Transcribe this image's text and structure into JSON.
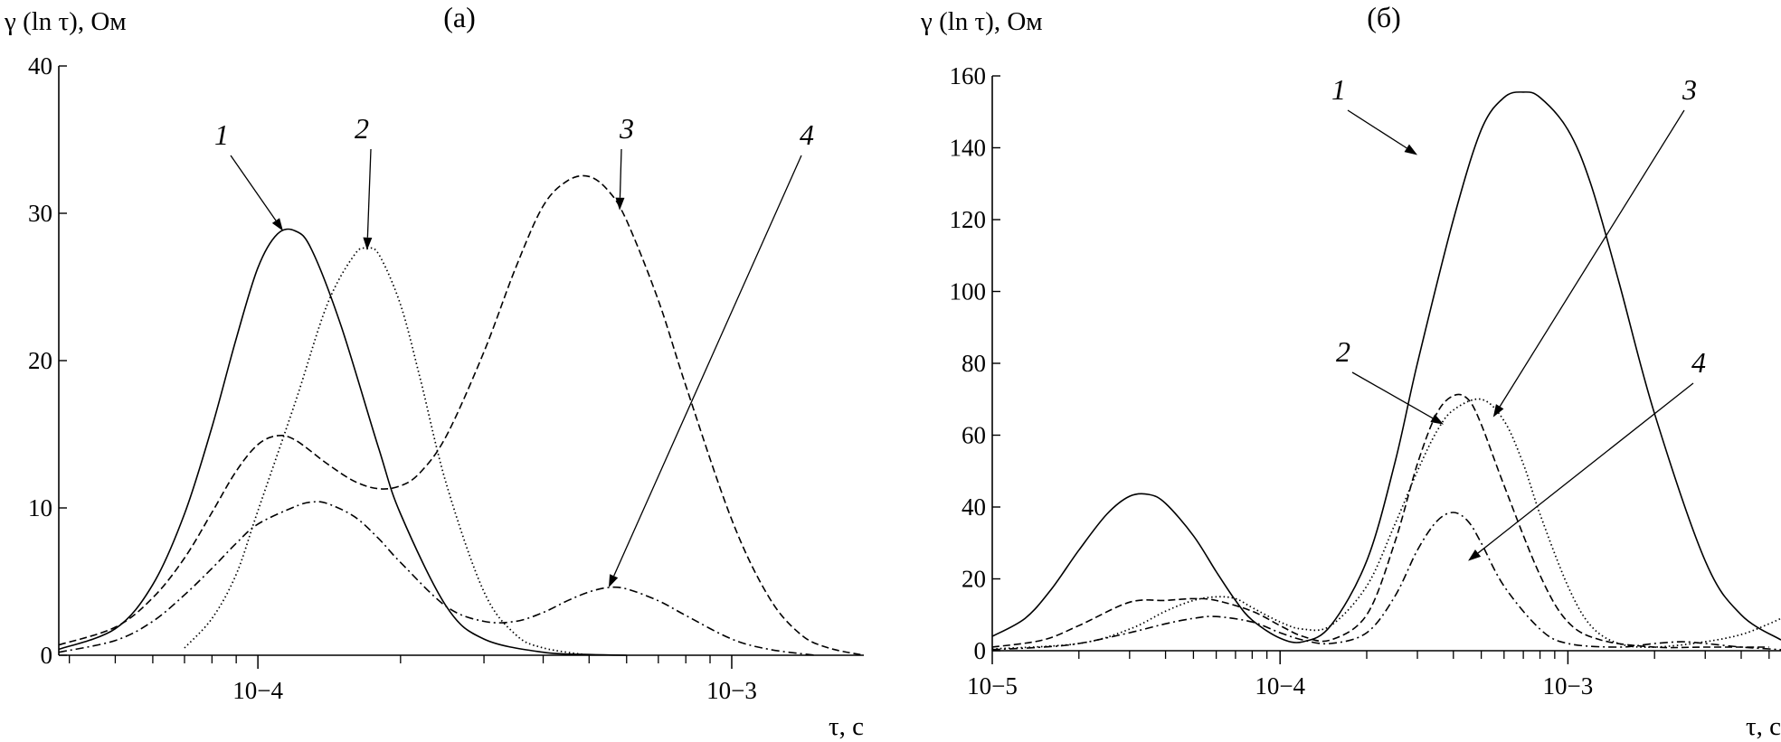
{
  "chart_data": [
    {
      "type": "line",
      "title": "(а)",
      "ylabel": "γ (ln τ), Ом",
      "xlabel": "τ, с",
      "xscale": "log",
      "xlim": [
        3.8e-05,
        0.0019
      ],
      "ylim": [
        0,
        40
      ],
      "xticks": [
        {
          "value": 0.0001,
          "label": "10−4"
        },
        {
          "value": 0.001,
          "label": "10−3"
        }
      ],
      "yticks": [
        {
          "value": 0,
          "label": "0"
        },
        {
          "value": 10,
          "label": "10"
        },
        {
          "value": 20,
          "label": "20"
        },
        {
          "value": 30,
          "label": "30"
        },
        {
          "value": 40,
          "label": "40"
        }
      ],
      "grid": false,
      "series": [
        {
          "name": "1",
          "style": "solid",
          "x": [
            3.8e-05,
            5e-05,
            6e-05,
            7e-05,
            8e-05,
            9e-05,
            0.0001,
            0.00011,
            0.00012,
            0.00013,
            0.00015,
            0.00018,
            0.0002,
            0.00025,
            0.0003,
            0.0004,
            0.0005,
            0.0006
          ],
          "y": [
            0.4,
            1.8,
            4.8,
            9.6,
            15.5,
            21.5,
            26.3,
            28.6,
            28.8,
            27.5,
            22.3,
            14.0,
            9.6,
            3.3,
            1.1,
            0.2,
            0.05,
            0
          ]
        },
        {
          "name": "2",
          "style": "dotted",
          "x": [
            7e-05,
            8e-05,
            9e-05,
            0.0001,
            0.00012,
            0.00014,
            0.00016,
            0.00017,
            0.00018,
            0.0002,
            0.00022,
            0.00025,
            0.0003,
            0.00035,
            0.0004,
            0.0005
          ],
          "y": [
            0.5,
            2.5,
            5.5,
            9.8,
            17.2,
            23.8,
            27.2,
            27.6,
            27.2,
            23.8,
            18.8,
            11.6,
            4.3,
            1.4,
            0.5,
            0
          ]
        },
        {
          "name": "3",
          "style": "dashed",
          "x": [
            3.8e-05,
            5e-05,
            6e-05,
            7e-05,
            8e-05,
            9e-05,
            0.0001,
            0.00011,
            0.00012,
            0.00014,
            0.00016,
            0.00018,
            0.0002,
            0.00022,
            0.00025,
            0.0003,
            0.00035,
            0.0004,
            0.00045,
            0.0005,
            0.00055,
            0.0006,
            0.0007,
            0.0008,
            0.001,
            0.0012,
            0.0014,
            0.0016,
            0.0019
          ],
          "y": [
            0.7,
            1.9,
            3.9,
            6.6,
            9.7,
            12.5,
            14.3,
            14.9,
            14.6,
            13.0,
            11.8,
            11.3,
            11.5,
            12.4,
            14.9,
            20.6,
            26.3,
            30.5,
            32.2,
            32.5,
            31.5,
            29.5,
            24.1,
            18.3,
            9.2,
            3.9,
            1.4,
            0.5,
            0
          ]
        },
        {
          "name": "4",
          "style": "dashdot",
          "x": [
            3.8e-05,
            5e-05,
            6e-05,
            7e-05,
            8e-05,
            9e-05,
            0.0001,
            0.00012,
            0.00013,
            0.00014,
            0.00016,
            0.00018,
            0.0002,
            0.00025,
            0.0003,
            0.00035,
            0.0004,
            0.00045,
            0.0005,
            0.00055,
            0.0006,
            0.0007,
            0.0008,
            0.001,
            0.0012,
            0.0015
          ],
          "y": [
            0.2,
            1.0,
            2.3,
            4.1,
            5.9,
            7.6,
            8.9,
            10.1,
            10.4,
            10.3,
            9.4,
            7.9,
            6.3,
            3.3,
            2.3,
            2.3,
            2.9,
            3.7,
            4.3,
            4.6,
            4.5,
            3.7,
            2.7,
            1.1,
            0.4,
            0
          ]
        }
      ],
      "labels": [
        {
          "text": "1",
          "series": "1",
          "tip": [
            0.000113,
            28.8
          ]
        },
        {
          "text": "2",
          "series": "2",
          "tip": [
            0.00017,
            27.5
          ]
        },
        {
          "text": "3",
          "series": "3",
          "tip": [
            0.00058,
            30.2
          ]
        },
        {
          "text": "4",
          "series": "4",
          "tip": [
            0.00055,
            4.6
          ]
        }
      ]
    },
    {
      "type": "line",
      "title": "(б)",
      "ylabel": "γ (ln τ), Ом",
      "xlabel": "τ, с",
      "xscale": "log",
      "xlim": [
        1e-05,
        0.0055
      ],
      "ylim": [
        0,
        160
      ],
      "xticks": [
        {
          "value": 1e-05,
          "label": "10−5"
        },
        {
          "value": 0.0001,
          "label": "10−4"
        },
        {
          "value": 0.001,
          "label": "10−3"
        }
      ],
      "yticks": [
        {
          "value": 0,
          "label": "0"
        },
        {
          "value": 20,
          "label": "20"
        },
        {
          "value": 40,
          "label": "40"
        },
        {
          "value": 60,
          "label": "60"
        },
        {
          "value": 80,
          "label": "80"
        },
        {
          "value": 100,
          "label": "100"
        },
        {
          "value": 120,
          "label": "120"
        },
        {
          "value": 140,
          "label": "140"
        },
        {
          "value": 160,
          "label": "160"
        }
      ],
      "grid": false,
      "series": [
        {
          "name": "1",
          "style": "solid",
          "x": [
            1e-05,
            1.3e-05,
            1.6e-05,
            2e-05,
            2.5e-05,
            3e-05,
            3.5e-05,
            4e-05,
            5e-05,
            6e-05,
            7e-05,
            8e-05,
            0.0001,
            0.00012,
            0.00015,
            0.0002,
            0.00025,
            0.0003,
            0.0004,
            0.0005,
            0.0006,
            0.0007,
            0.0008,
            0.001,
            0.0012,
            0.0015,
            0.002,
            0.003,
            0.004,
            0.0055
          ],
          "y": [
            4,
            9,
            17,
            28,
            38,
            43,
            43.5,
            41,
            32,
            22,
            14,
            8.5,
            3.5,
            2.5,
            7,
            25,
            52,
            80,
            120,
            145,
            154,
            155.5,
            154,
            145,
            130,
            103,
            66,
            25,
            10,
            3
          ]
        },
        {
          "name": "2",
          "style": "dashed",
          "x": [
            1e-05,
            1.5e-05,
            2e-05,
            3e-05,
            4e-05,
            5e-05,
            6e-05,
            8e-05,
            0.0001,
            0.00012,
            0.00015,
            0.0002,
            0.00025,
            0.0003,
            0.00035,
            0.0004,
            0.00045,
            0.0005,
            0.0006,
            0.0008,
            0.001,
            0.0013,
            0.002,
            0.003,
            0.005
          ],
          "y": [
            1,
            3,
            7,
            13.5,
            14,
            14.5,
            14,
            11,
            7,
            4,
            3,
            10,
            30,
            52,
            66,
            71,
            70,
            63,
            46,
            21,
            8,
            3,
            1,
            1,
            1
          ]
        },
        {
          "name": "3",
          "style": "dotted",
          "x": [
            1e-05,
            2e-05,
            3e-05,
            4e-05,
            5e-05,
            6e-05,
            7e-05,
            8e-05,
            0.0001,
            0.00012,
            0.00015,
            0.0002,
            0.00025,
            0.0003,
            0.00035,
            0.0004,
            0.0005,
            0.0006,
            0.0007,
            0.0008,
            0.001,
            0.0012,
            0.0015,
            0.002,
            0.003,
            0.004,
            0.005,
            0.0055
          ],
          "y": [
            0.5,
            2,
            6,
            11,
            14,
            15,
            14.5,
            12,
            8,
            6,
            7,
            18,
            35,
            50,
            61,
            67,
            70,
            64,
            52,
            38,
            18,
            7,
            2,
            1,
            2.5,
            4.5,
            7.5,
            9
          ]
        },
        {
          "name": "4",
          "style": "dashdot",
          "x": [
            1e-05,
            1.5e-05,
            2e-05,
            3e-05,
            4e-05,
            5e-05,
            6e-05,
            8e-05,
            0.0001,
            0.00012,
            0.00015,
            0.0002,
            0.00025,
            0.0003,
            0.00035,
            0.0004,
            0.00045,
            0.0005,
            0.0006,
            0.0008,
            0.001,
            0.0015,
            0.002,
            0.0025,
            0.003,
            0.004,
            0.005,
            0.0055
          ],
          "y": [
            0.3,
            1,
            2,
            5,
            7.5,
            9,
            9.5,
            8,
            5,
            3,
            2,
            5,
            15,
            28,
            36,
            38.5,
            36,
            30,
            18,
            6,
            2,
            1,
            2,
            2.5,
            2,
            1,
            0.5,
            0.3
          ]
        }
      ],
      "labels": [
        {
          "text": "1",
          "series": "1",
          "tip": [
            0.0003,
            138
          ]
        },
        {
          "text": "2",
          "series": "2",
          "tip": [
            0.00037,
            63
          ]
        },
        {
          "text": "3",
          "series": "3",
          "tip": [
            0.00055,
            65
          ]
        },
        {
          "text": "4",
          "series": "4",
          "tip": [
            0.00045,
            25
          ]
        }
      ]
    }
  ]
}
